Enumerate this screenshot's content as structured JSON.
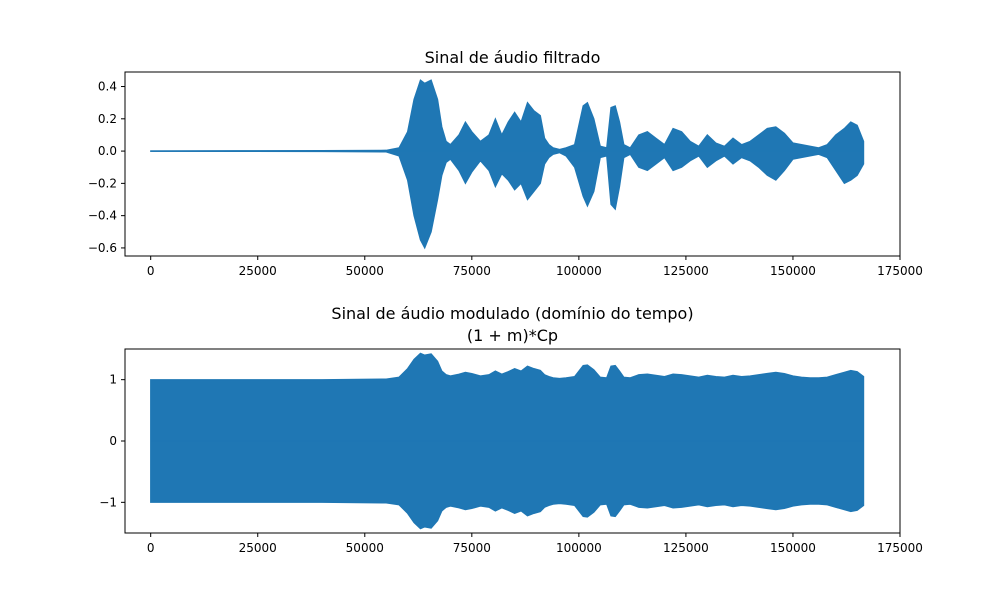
{
  "chart_data": [
    {
      "type": "line",
      "title": "Sinal de áudio filtrado",
      "xlabel": "",
      "ylabel": "",
      "xlim": [
        -6000,
        175000
      ],
      "ylim": [
        -0.65,
        0.49
      ],
      "xticks": [
        0,
        25000,
        50000,
        75000,
        100000,
        125000,
        150000,
        175000
      ],
      "xtick_labels": [
        "0",
        "25000",
        "50000",
        "75000",
        "100000",
        "125000",
        "150000",
        "175000"
      ],
      "yticks": [
        0.4,
        0.2,
        0.0,
        -0.2,
        -0.4,
        -0.6
      ],
      "ytick_labels": [
        "0.4",
        "0.2",
        "0.0",
        "−0.2",
        "−0.4",
        "−0.6"
      ],
      "grid": false,
      "color": "#1f77b4",
      "series": [
        {
          "x": [
            0,
            20000,
            40000,
            55000,
            58000,
            60000,
            61500,
            63000,
            64000,
            65500,
            67000,
            68000,
            69000,
            70000,
            72000,
            73500,
            75000,
            77000,
            79000,
            80500,
            82000,
            83500,
            85000,
            86500,
            88000,
            89500,
            91000,
            92000,
            93000,
            94000,
            95500,
            97000,
            99000,
            101000,
            102000,
            103500,
            105000,
            106500,
            107500,
            108500,
            109500,
            110500,
            112000,
            114000,
            116000,
            118000,
            120000,
            122000,
            124000,
            126000,
            128000,
            130000,
            132000,
            134000,
            136000,
            138000,
            140000,
            142000,
            144000,
            146000,
            148000,
            150000,
            152000,
            154000,
            156000,
            158000,
            160000,
            162000,
            163500,
            165000,
            166500
          ],
          "envelope_upper": [
            0.001,
            0.002,
            0.003,
            0.005,
            0.02,
            0.12,
            0.32,
            0.44,
            0.42,
            0.44,
            0.32,
            0.15,
            0.06,
            0.04,
            0.1,
            0.18,
            0.12,
            0.06,
            0.1,
            0.2,
            0.1,
            0.18,
            0.24,
            0.18,
            0.3,
            0.25,
            0.22,
            0.08,
            0.04,
            0.02,
            0.01,
            0.02,
            0.04,
            0.28,
            0.3,
            0.2,
            0.03,
            0.02,
            0.27,
            0.28,
            0.18,
            0.04,
            0.02,
            0.1,
            0.12,
            0.08,
            0.04,
            0.14,
            0.12,
            0.06,
            0.03,
            0.1,
            0.05,
            0.03,
            0.08,
            0.04,
            0.06,
            0.1,
            0.14,
            0.15,
            0.11,
            0.05,
            0.04,
            0.03,
            0.02,
            0.04,
            0.1,
            0.14,
            0.18,
            0.16,
            0.06
          ],
          "envelope_lower": [
            -0.001,
            -0.002,
            -0.003,
            -0.005,
            -0.03,
            -0.18,
            -0.4,
            -0.55,
            -0.6,
            -0.5,
            -0.3,
            -0.15,
            -0.07,
            -0.05,
            -0.12,
            -0.2,
            -0.13,
            -0.06,
            -0.12,
            -0.22,
            -0.14,
            -0.18,
            -0.24,
            -0.2,
            -0.3,
            -0.25,
            -0.2,
            -0.08,
            -0.04,
            -0.02,
            -0.01,
            -0.03,
            -0.1,
            -0.28,
            -0.34,
            -0.25,
            -0.04,
            -0.03,
            -0.33,
            -0.36,
            -0.22,
            -0.04,
            -0.02,
            -0.1,
            -0.12,
            -0.08,
            -0.04,
            -0.12,
            -0.1,
            -0.06,
            -0.03,
            -0.1,
            -0.06,
            -0.03,
            -0.08,
            -0.04,
            -0.06,
            -0.1,
            -0.15,
            -0.18,
            -0.12,
            -0.05,
            -0.04,
            -0.03,
            -0.02,
            -0.04,
            -0.12,
            -0.2,
            -0.18,
            -0.15,
            -0.08
          ]
        }
      ]
    },
    {
      "type": "line",
      "title": "Sinal de áudio modulado (domínio do tempo)\n(1 + m)*Cp",
      "title_lines": [
        "Sinal de áudio modulado (domínio do tempo)",
        "(1 + m)*Cp"
      ],
      "xlabel": "",
      "ylabel": "",
      "xlim": [
        -6000,
        175000
      ],
      "ylim": [
        -1.5,
        1.5
      ],
      "xticks": [
        0,
        25000,
        50000,
        75000,
        100000,
        125000,
        150000,
        175000
      ],
      "xtick_labels": [
        "0",
        "25000",
        "50000",
        "75000",
        "100000",
        "125000",
        "150000",
        "175000"
      ],
      "yticks": [
        1,
        0,
        -1
      ],
      "ytick_labels": [
        "1",
        "0",
        "−1"
      ],
      "grid": false,
      "color": "#1f77b4",
      "series": [
        {
          "x": [
            0,
            20000,
            40000,
            55000,
            58000,
            60000,
            61500,
            63000,
            64000,
            65500,
            67000,
            68000,
            69000,
            70000,
            72000,
            73500,
            75000,
            77000,
            79000,
            80500,
            82000,
            83500,
            85000,
            86500,
            88000,
            89500,
            91000,
            92000,
            93000,
            94000,
            95500,
            97000,
            99000,
            101000,
            102000,
            103500,
            105000,
            106500,
            107500,
            108500,
            109500,
            110500,
            112000,
            114000,
            116000,
            118000,
            120000,
            122000,
            124000,
            126000,
            128000,
            130000,
            132000,
            134000,
            136000,
            138000,
            140000,
            142000,
            144000,
            146000,
            148000,
            150000,
            152000,
            154000,
            156000,
            158000,
            160000,
            162000,
            163500,
            165000,
            166500
          ],
          "envelope_upper": [
            1.0,
            1.0,
            1.0,
            1.01,
            1.04,
            1.18,
            1.33,
            1.43,
            1.4,
            1.42,
            1.3,
            1.14,
            1.08,
            1.06,
            1.09,
            1.12,
            1.1,
            1.06,
            1.08,
            1.14,
            1.09,
            1.13,
            1.18,
            1.14,
            1.22,
            1.18,
            1.15,
            1.08,
            1.05,
            1.03,
            1.02,
            1.03,
            1.05,
            1.23,
            1.24,
            1.16,
            1.04,
            1.03,
            1.22,
            1.23,
            1.14,
            1.04,
            1.03,
            1.08,
            1.09,
            1.07,
            1.05,
            1.09,
            1.08,
            1.06,
            1.04,
            1.07,
            1.05,
            1.04,
            1.07,
            1.05,
            1.06,
            1.08,
            1.1,
            1.12,
            1.1,
            1.06,
            1.04,
            1.03,
            1.03,
            1.04,
            1.08,
            1.12,
            1.15,
            1.13,
            1.05
          ],
          "envelope_lower": [
            -1.0,
            -1.0,
            -1.0,
            -1.01,
            -1.04,
            -1.18,
            -1.33,
            -1.43,
            -1.4,
            -1.42,
            -1.3,
            -1.14,
            -1.08,
            -1.06,
            -1.09,
            -1.12,
            -1.1,
            -1.06,
            -1.08,
            -1.14,
            -1.09,
            -1.13,
            -1.18,
            -1.14,
            -1.22,
            -1.18,
            -1.15,
            -1.08,
            -1.05,
            -1.03,
            -1.02,
            -1.03,
            -1.05,
            -1.23,
            -1.24,
            -1.16,
            -1.04,
            -1.03,
            -1.22,
            -1.23,
            -1.14,
            -1.04,
            -1.03,
            -1.08,
            -1.09,
            -1.07,
            -1.05,
            -1.09,
            -1.08,
            -1.06,
            -1.04,
            -1.07,
            -1.05,
            -1.04,
            -1.07,
            -1.05,
            -1.06,
            -1.08,
            -1.1,
            -1.12,
            -1.1,
            -1.06,
            -1.04,
            -1.03,
            -1.03,
            -1.04,
            -1.08,
            -1.12,
            -1.15,
            -1.13,
            -1.05
          ]
        }
      ]
    }
  ]
}
